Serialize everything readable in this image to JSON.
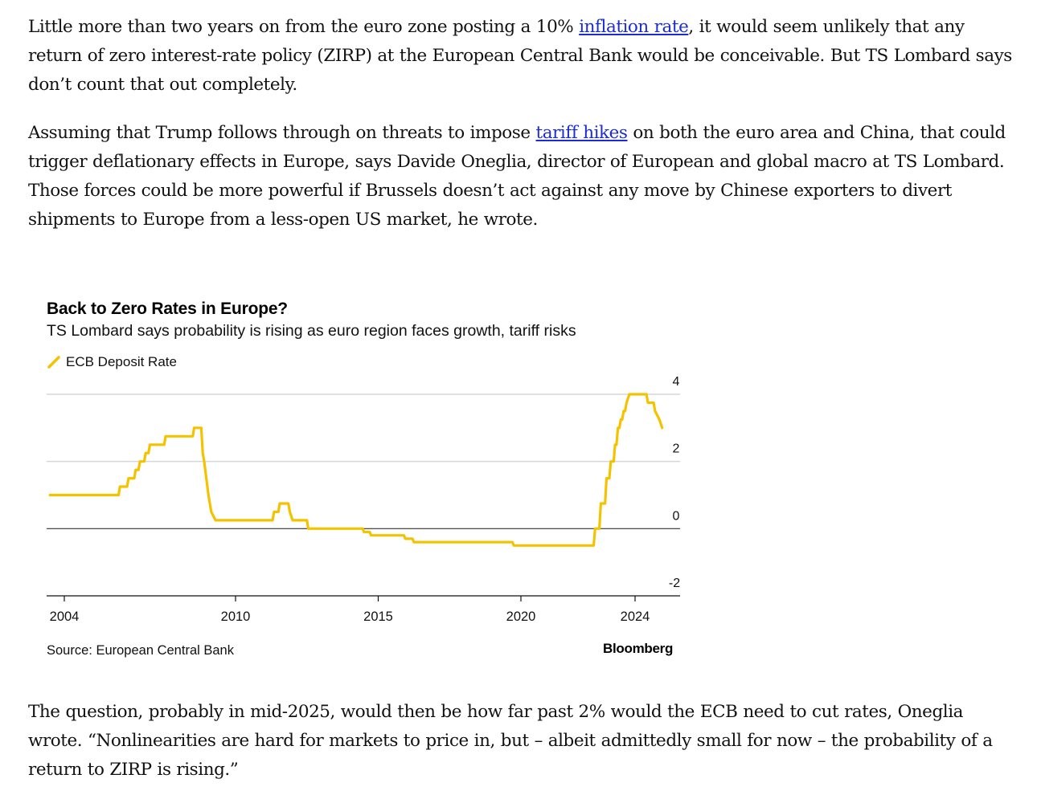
{
  "article": {
    "p1": {
      "before": "Little more than two years on from the euro zone posting a 10% ",
      "link": "inflation rate",
      "after": ", it would seem unlikely that any return of zero interest-rate policy (ZIRP) at the European Central Bank would be conceivable. But TS Lombard says don’t count that out completely."
    },
    "p2": {
      "before": "Assuming that Trump follows through on threats to impose ",
      "link": "tariff hikes",
      "after": " on both the euro area and China, that could trigger deflationary effects in Europe, says Davide Oneglia, director of European and global macro at TS Lombard. Those forces could be more powerful if Brussels doesn’t act against any move by Chinese exporters to divert shipments to Europe from a less-open US market, he wrote."
    },
    "p3": "The question, probably in mid-2025, would then be how far past 2% would the ECB need to cut rates, Oneglia wrote. “Nonlinearities are hard for markets to price in, but – albeit admittedly small for now – the probability of a return to ZIRP is rising.”"
  },
  "chart_data": {
    "type": "line",
    "title": "Back to Zero Rates in Europe?",
    "subtitle": "TS Lombard says probability is rising as euro region faces growth, tariff risks",
    "source": "Source: European Central Bank",
    "brand": "Bloomberg",
    "color": "#f5c200",
    "series": [
      {
        "name": "ECB Deposit Rate",
        "points": [
          [
            2003.5,
            1.0
          ],
          [
            2005.9,
            1.0
          ],
          [
            2005.95,
            1.25
          ],
          [
            2006.2,
            1.25
          ],
          [
            2006.25,
            1.5
          ],
          [
            2006.45,
            1.5
          ],
          [
            2006.5,
            1.75
          ],
          [
            2006.6,
            1.75
          ],
          [
            2006.65,
            2.0
          ],
          [
            2006.8,
            2.0
          ],
          [
            2006.85,
            2.25
          ],
          [
            2006.95,
            2.25
          ],
          [
            2007.0,
            2.5
          ],
          [
            2007.5,
            2.5
          ],
          [
            2007.55,
            2.75
          ],
          [
            2008.5,
            2.75
          ],
          [
            2008.55,
            3.0
          ],
          [
            2008.8,
            3.0
          ],
          [
            2008.85,
            2.25
          ],
          [
            2008.9,
            2.0
          ],
          [
            2009.05,
            1.0
          ],
          [
            2009.15,
            0.5
          ],
          [
            2009.3,
            0.25
          ],
          [
            2011.3,
            0.25
          ],
          [
            2011.35,
            0.5
          ],
          [
            2011.5,
            0.5
          ],
          [
            2011.55,
            0.75
          ],
          [
            2011.85,
            0.75
          ],
          [
            2011.9,
            0.5
          ],
          [
            2012.0,
            0.25
          ],
          [
            2012.5,
            0.25
          ],
          [
            2012.55,
            0.0
          ],
          [
            2014.45,
            0.0
          ],
          [
            2014.5,
            -0.1
          ],
          [
            2014.7,
            -0.1
          ],
          [
            2014.75,
            -0.2
          ],
          [
            2015.9,
            -0.2
          ],
          [
            2015.95,
            -0.3
          ],
          [
            2016.2,
            -0.3
          ],
          [
            2016.25,
            -0.4
          ],
          [
            2019.7,
            -0.4
          ],
          [
            2019.75,
            -0.5
          ],
          [
            2022.55,
            -0.5
          ],
          [
            2022.6,
            0.0
          ],
          [
            2022.75,
            0.0
          ],
          [
            2022.8,
            0.75
          ],
          [
            2022.95,
            0.75
          ],
          [
            2023.0,
            1.5
          ],
          [
            2023.1,
            1.5
          ],
          [
            2023.15,
            2.0
          ],
          [
            2023.25,
            2.0
          ],
          [
            2023.3,
            2.5
          ],
          [
            2023.35,
            2.5
          ],
          [
            2023.4,
            3.0
          ],
          [
            2023.45,
            3.0
          ],
          [
            2023.5,
            3.25
          ],
          [
            2023.55,
            3.25
          ],
          [
            2023.6,
            3.5
          ],
          [
            2023.65,
            3.5
          ],
          [
            2023.7,
            3.75
          ],
          [
            2023.8,
            4.0
          ],
          [
            2024.4,
            4.0
          ],
          [
            2024.45,
            3.75
          ],
          [
            2024.65,
            3.75
          ],
          [
            2024.7,
            3.5
          ],
          [
            2024.85,
            3.25
          ],
          [
            2024.95,
            3.0
          ]
        ]
      }
    ],
    "x_ticks": [
      2004,
      2010,
      2015,
      2020,
      2024
    ],
    "xlim": [
      2003.0,
      2025.3
    ],
    "y_ticks": [
      -2,
      0,
      2,
      4
    ],
    "ylim": [
      -2,
      4
    ],
    "y_axis_side": "right",
    "grid": true,
    "legend_position": "top-left"
  }
}
